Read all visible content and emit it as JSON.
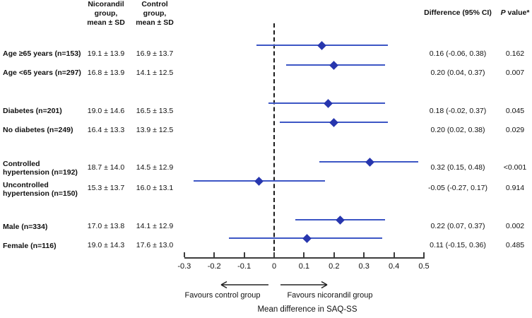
{
  "header": {
    "col_nicorandil": "Nicorandil\ngroup,\nmean ± SD",
    "col_control": "Control\ngroup,\nmean ± SD",
    "col_difference": "Difference (95% CI)",
    "col_p_italic": "P",
    "col_p_rest": " value*"
  },
  "chart_data": {
    "type": "scatter",
    "variant": "forest_plot",
    "title": "",
    "xlabel": "Mean difference in SAQ-SS",
    "xlim": [
      -0.3,
      0.5
    ],
    "x_ticks": [
      -0.3,
      -0.2,
      -0.1,
      0,
      0.1,
      0.2,
      0.3,
      0.4,
      0.5
    ],
    "x_tick_labels": [
      "-0.3",
      "-0.2",
      "-0.1",
      "0",
      "0.1",
      "0.2",
      "0.3",
      "0.4",
      "0.5"
    ],
    "zero_reference_line": 0,
    "favours_left": "Favours control group",
    "favours_right": "Favours nicorandil group",
    "colors": {
      "ci_line": "#3d56c5",
      "point": "#2736ae",
      "axis": "#3d3d3d"
    },
    "rows": [
      {
        "label": "Age ≥65 years (n=153)",
        "nicorandil": "19.1 ± 13.9",
        "control": "16.9 ± 13.7",
        "estimate": 0.16,
        "ci_low": -0.06,
        "ci_high": 0.38,
        "difference": "0.16 (-0.06, 0.38)",
        "p": "0.162"
      },
      {
        "label": "Age <65 years (n=297)",
        "nicorandil": "16.8 ± 13.9",
        "control": "14.1 ± 12.5",
        "estimate": 0.2,
        "ci_low": 0.04,
        "ci_high": 0.37,
        "difference": "0.20 (0.04, 0.37)",
        "p": "0.007"
      },
      {
        "label": "Diabetes (n=201)",
        "nicorandil": "19.0 ± 14.6",
        "control": "16.5 ± 13.5",
        "estimate": 0.18,
        "ci_low": -0.02,
        "ci_high": 0.37,
        "difference": "0.18 (-0.02, 0.37)",
        "p": "0.045"
      },
      {
        "label": "No diabetes (n=249)",
        "nicorandil": "16.4 ± 13.3",
        "control": "13.9 ± 12.5",
        "estimate": 0.2,
        "ci_low": 0.02,
        "ci_high": 0.38,
        "difference": "0.20 (0.02, 0.38)",
        "p": "0.029"
      },
      {
        "label": "Controlled\nhypertension (n=192)",
        "nicorandil": "18.7 ± 14.0",
        "control": "14.5 ± 12.9",
        "estimate": 0.32,
        "ci_low": 0.15,
        "ci_high": 0.48,
        "difference": "0.32 (0.15, 0.48)",
        "p": "<0.001"
      },
      {
        "label": "Uncontrolled\nhypertension (n=150)",
        "nicorandil": "15.3 ± 13.7",
        "control": "16.0 ± 13.1",
        "estimate": -0.05,
        "ci_low": -0.27,
        "ci_high": 0.17,
        "difference": "-0.05 (-0.27, 0.17)",
        "p": "0.914"
      },
      {
        "label": "Male (n=334)",
        "nicorandil": "17.0 ± 13.8",
        "control": "14.1 ± 12.9",
        "estimate": 0.22,
        "ci_low": 0.07,
        "ci_high": 0.37,
        "difference": "0.22 (0.07, 0.37)",
        "p": "0.002"
      },
      {
        "label": "Female (n=116)",
        "nicorandil": "19.0 ± 14.3",
        "control": "17.6 ± 13.0",
        "estimate": 0.11,
        "ci_low": -0.15,
        "ci_high": 0.36,
        "difference": "0.11 (-0.15, 0.36)",
        "p": "0.485"
      }
    ]
  }
}
